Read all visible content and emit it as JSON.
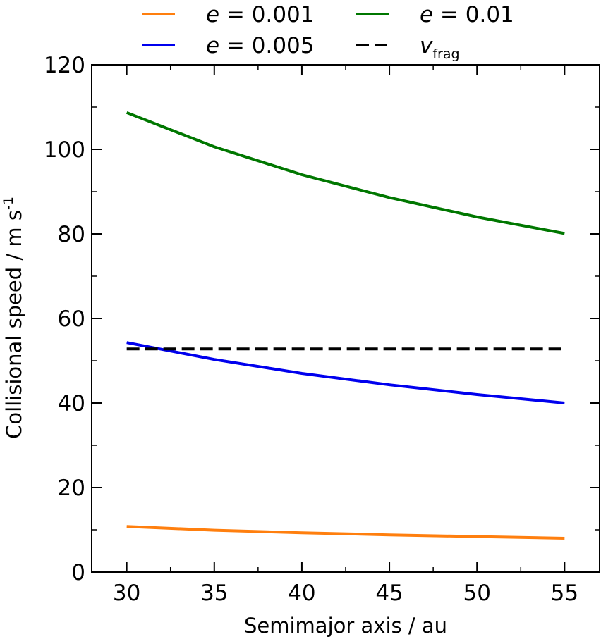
{
  "chart_data": {
    "type": "line",
    "xlabel": "Semimajor axis / au",
    "ylabel": {
      "text": "Collisional speed / m s",
      "superscript": "-1"
    },
    "xlim": [
      28,
      57
    ],
    "ylim": [
      0,
      120
    ],
    "xticks": [
      30,
      35,
      40,
      45,
      50,
      55
    ],
    "xtick_labels": [
      "30",
      "35",
      "40",
      "45",
      "50",
      "55"
    ],
    "yticks": [
      0,
      20,
      40,
      60,
      80,
      100,
      120
    ],
    "ytick_labels": [
      "0",
      "20",
      "40",
      "60",
      "80",
      "100",
      "120"
    ],
    "grid": false,
    "legend_position": "top",
    "series": [
      {
        "name": "e = 0.001",
        "name_var": "e",
        "name_rest": " = 0.001",
        "color": "#ff7f0e",
        "dash": "solid",
        "x": [
          30,
          35,
          40,
          45,
          50,
          55
        ],
        "values": [
          10.8,
          9.9,
          9.3,
          8.8,
          8.4,
          8.0
        ]
      },
      {
        "name": "e = 0.005",
        "name_var": "e",
        "name_rest": " = 0.005",
        "color": "#0000ee",
        "dash": "solid",
        "x": [
          30,
          35,
          40,
          45,
          50,
          55
        ],
        "values": [
          54.3,
          50.3,
          47.0,
          44.3,
          42.0,
          40.0
        ]
      },
      {
        "name": "e = 0.01",
        "name_var": "e",
        "name_rest": " = 0.01",
        "color": "#007700",
        "dash": "solid",
        "x": [
          30,
          35,
          40,
          45,
          50,
          55
        ],
        "values": [
          108.7,
          100.6,
          94.0,
          88.6,
          84.0,
          80.1
        ]
      },
      {
        "name": "v_frag",
        "name_var": "v",
        "name_sub": "frag",
        "color": "#000000",
        "dash": "dashed",
        "x": [
          30,
          55
        ],
        "values": [
          52.8,
          52.8
        ]
      }
    ]
  }
}
